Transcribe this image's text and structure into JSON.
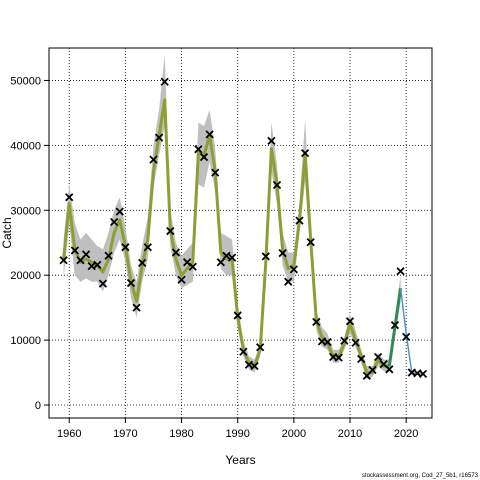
{
  "chart_data": {
    "type": "line",
    "xlabel": "Years",
    "ylabel": "Catch",
    "xlim": [
      1956.4,
      2024.6
    ],
    "ylim": [
      -2000,
      55000
    ],
    "xticks": [
      1960,
      1970,
      1980,
      1990,
      2000,
      2010,
      2020
    ],
    "yticks": [
      0,
      10000,
      20000,
      30000,
      40000,
      50000
    ],
    "grid": true,
    "source_note": "stockassessment.org, Cod_27_5b1, r16573",
    "colors": {
      "band": "#bfbfbf",
      "fit_line": "#8aa033",
      "recent_line": "#2e8b57",
      "forecast_line": "#4f94cd",
      "observed": "#000000"
    },
    "fit": {
      "years": [
        1959,
        1960,
        1961,
        1962,
        1963,
        1964,
        1965,
        1966,
        1967,
        1968,
        1969,
        1970,
        1971,
        1972,
        1973,
        1974,
        1975,
        1976,
        1977,
        1978,
        1979,
        1980,
        1981,
        1982,
        1983,
        1984,
        1985,
        1986,
        1987,
        1988,
        1989,
        1990,
        1991,
        1992,
        1993,
        1994,
        1995,
        1996,
        1997,
        1998,
        1999,
        2000,
        2001,
        2002,
        2003,
        2004,
        2005,
        2006,
        2007,
        2008,
        2009,
        2010,
        2011,
        2012,
        2013,
        2014,
        2015,
        2016,
        2017,
        2018,
        2019
      ],
      "values": [
        22500,
        31000,
        24000,
        22000,
        22500,
        22000,
        21500,
        20500,
        22500,
        26500,
        28500,
        24500,
        19000,
        16000,
        21500,
        25500,
        36000,
        41500,
        47000,
        27000,
        22500,
        20000,
        21000,
        22000,
        39000,
        38500,
        41500,
        36000,
        23500,
        22500,
        22500,
        13500,
        8500,
        6500,
        6000,
        8500,
        22000,
        39500,
        34000,
        24000,
        21000,
        21500,
        28500,
        38500,
        25500,
        13000,
        10500,
        9500,
        7500,
        7500,
        9500,
        12500,
        10000,
        7500,
        5000,
        5000,
        7000,
        6000,
        6000,
        12000,
        18000
      ],
      "band_lower": [
        19500,
        28000,
        20000,
        19000,
        19500,
        19000,
        19000,
        17500,
        20000,
        23500,
        25500,
        22000,
        16500,
        13500,
        19000,
        22500,
        33500,
        38500,
        43000,
        24500,
        20000,
        18000,
        18500,
        19000,
        34000,
        33500,
        37500,
        33000,
        21000,
        20000,
        20000,
        12000,
        7500,
        5500,
        5000,
        7500,
        20000,
        36000,
        31000,
        21500,
        19000,
        19000,
        26500,
        34500,
        23000,
        11500,
        9000,
        8500,
        6500,
        6500,
        8500,
        11000,
        9000,
        6500,
        4000,
        4300,
        6000,
        5200,
        5000,
        10500,
        16000
      ],
      "band_upper": [
        25500,
        34000,
        28000,
        25500,
        26500,
        25500,
        24500,
        24000,
        26500,
        30000,
        32000,
        27500,
        21500,
        19000,
        24500,
        29000,
        40000,
        45500,
        54000,
        30000,
        25000,
        23000,
        24000,
        25000,
        43500,
        43000,
        45500,
        39500,
        26500,
        26000,
        25500,
        15500,
        10000,
        7500,
        7000,
        9500,
        24500,
        43500,
        37000,
        26500,
        23500,
        23500,
        31000,
        44000,
        28000,
        14500,
        12000,
        11000,
        8500,
        8500,
        10500,
        14000,
        11500,
        8500,
        6000,
        6000,
        8000,
        7000,
        7000,
        13500,
        20000
      ]
    },
    "forecast": {
      "years": [
        2019,
        2020,
        2021,
        2022,
        2023
      ],
      "values": [
        18000,
        11000,
        5000,
        4800,
        4800
      ]
    },
    "observed": {
      "years": [
        1959,
        1960,
        1961,
        1962,
        1963,
        1964,
        1965,
        1966,
        1967,
        1968,
        1969,
        1970,
        1971,
        1972,
        1973,
        1974,
        1975,
        1976,
        1977,
        1978,
        1979,
        1980,
        1981,
        1982,
        1983,
        1984,
        1985,
        1986,
        1987,
        1988,
        1989,
        1990,
        1991,
        1992,
        1993,
        1994,
        1995,
        1996,
        1997,
        1998,
        1999,
        2000,
        2001,
        2002,
        2003,
        2004,
        2005,
        2006,
        2007,
        2008,
        2009,
        2010,
        2011,
        2012,
        2013,
        2014,
        2015,
        2016,
        2017,
        2018,
        2019,
        2020,
        2021,
        2022,
        2023
      ],
      "values": [
        22300,
        32000,
        23800,
        22300,
        23200,
        21400,
        21600,
        18700,
        23000,
        28200,
        29800,
        24300,
        18800,
        15000,
        21900,
        24300,
        37800,
        41200,
        49800,
        26800,
        23500,
        19300,
        22000,
        21300,
        39400,
        38200,
        41700,
        35800,
        22000,
        23000,
        22700,
        13800,
        8200,
        6200,
        6000,
        8900,
        22900,
        40700,
        33900,
        23400,
        19000,
        20900,
        28400,
        38800,
        25100,
        12800,
        9800,
        9700,
        7400,
        7300,
        9900,
        12900,
        9600,
        7100,
        4500,
        5400,
        7400,
        6300,
        5500,
        12300,
        20600,
        10500,
        5000,
        4900,
        4800
      ]
    }
  }
}
